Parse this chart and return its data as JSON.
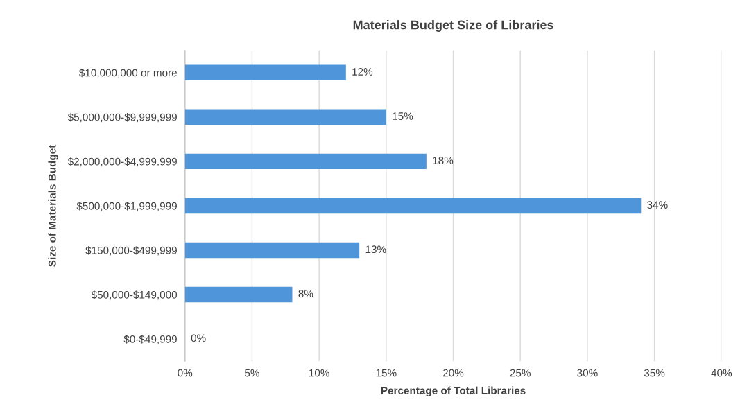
{
  "chart_data": {
    "type": "bar",
    "orientation": "horizontal",
    "title": "Materials Budget Size of Libraries",
    "xlabel": "Percentage of Total Libraries",
    "ylabel": "Size of Materials Budget",
    "categories": [
      "$10,000,000 or more",
      "$5,000,000-$9,999,999",
      "$2,000,000-$4,999.999",
      "$500,000-$1,999,999",
      "$150,000-$499,999",
      "$50,000-$149,000",
      "$0-$49,999"
    ],
    "values": [
      12,
      15,
      18,
      34,
      13,
      8,
      0
    ],
    "color": "#4e95d9",
    "value_labels": [
      "12%",
      "15%",
      "18%",
      "34%",
      "13%",
      "8%",
      "0%"
    ],
    "xlim": [
      0,
      40
    ],
    "xticks": [
      {
        "value": 0,
        "label": "0%"
      },
      {
        "value": 5,
        "label": "5%"
      },
      {
        "value": 10,
        "label": "10%"
      },
      {
        "value": 15,
        "label": "15%"
      },
      {
        "value": 20,
        "label": "20%"
      },
      {
        "value": 25,
        "label": "25%"
      },
      {
        "value": 30,
        "label": "30%"
      },
      {
        "value": 35,
        "label": "35%"
      },
      {
        "value": 40,
        "label": "40%"
      }
    ],
    "grid": "x",
    "legend": false
  }
}
